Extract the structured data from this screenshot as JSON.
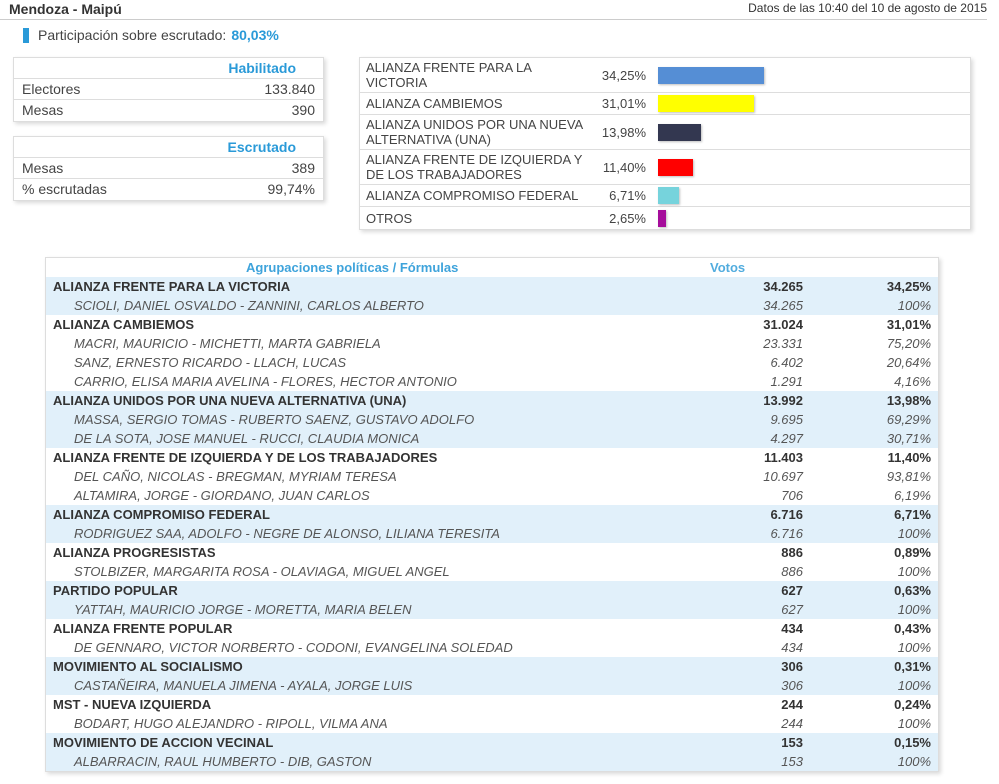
{
  "header": {
    "title": "Mendoza - Maipú",
    "date": "Datos de las 10:40 del 10 de agosto de 2015"
  },
  "participation": {
    "label": "Participación sobre escrutado:",
    "value": "80,03%"
  },
  "habilitado": {
    "title": "Habilitado",
    "rows": [
      {
        "label": "Electores",
        "value": "133.840"
      },
      {
        "label": "Mesas",
        "value": "390"
      }
    ]
  },
  "escrutado": {
    "title": "Escrutado",
    "rows": [
      {
        "label": "Mesas",
        "value": "389"
      },
      {
        "label": "% escrutadas",
        "value": "99,74%"
      }
    ]
  },
  "summary": [
    {
      "label": "ALIANZA FRENTE PARA LA VICTORIA",
      "pct": "34,25%",
      "value": 34.25,
      "color": "#558ed5"
    },
    {
      "label": "ALIANZA CAMBIEMOS",
      "pct": "31,01%",
      "value": 31.01,
      "color": "#ffff00"
    },
    {
      "label": "ALIANZA UNIDOS POR UNA NUEVA ALTERNATIVA (UNA)",
      "pct": "13,98%",
      "value": 13.98,
      "color": "#333750"
    },
    {
      "label": "ALIANZA FRENTE DE IZQUIERDA Y DE LOS TRABAJADORES",
      "pct": "11,40%",
      "value": 11.4,
      "color": "#ff0000"
    },
    {
      "label": "ALIANZA COMPROMISO FEDERAL",
      "pct": "6,71%",
      "value": 6.71,
      "color": "#76d3dc"
    },
    {
      "label": "OTROS",
      "pct": "2,65%",
      "value": 2.65,
      "color": "#a50d9b"
    }
  ],
  "results": {
    "col_name": "Agrupaciones políticas / Fórmulas",
    "col_votes": "Votos",
    "groups": [
      {
        "name": "ALIANZA FRENTE PARA LA VICTORIA",
        "votes": "34.265",
        "pct": "34,25%",
        "formulas": [
          {
            "name": "SCIOLI, DANIEL OSVALDO - ZANNINI, CARLOS ALBERTO",
            "votes": "34.265",
            "pct": "100%"
          }
        ]
      },
      {
        "name": "ALIANZA CAMBIEMOS",
        "votes": "31.024",
        "pct": "31,01%",
        "formulas": [
          {
            "name": "MACRI, MAURICIO - MICHETTI, MARTA GABRIELA",
            "votes": "23.331",
            "pct": "75,20%"
          },
          {
            "name": "SANZ, ERNESTO RICARDO - LLACH, LUCAS",
            "votes": "6.402",
            "pct": "20,64%"
          },
          {
            "name": "CARRIO, ELISA MARIA AVELINA - FLORES, HECTOR ANTONIO",
            "votes": "1.291",
            "pct": "4,16%"
          }
        ]
      },
      {
        "name": "ALIANZA UNIDOS POR UNA NUEVA ALTERNATIVA (UNA)",
        "votes": "13.992",
        "pct": "13,98%",
        "formulas": [
          {
            "name": "MASSA, SERGIO TOMAS - RUBERTO SAENZ, GUSTAVO ADOLFO",
            "votes": "9.695",
            "pct": "69,29%"
          },
          {
            "name": "DE LA SOTA, JOSE MANUEL - RUCCI, CLAUDIA MONICA",
            "votes": "4.297",
            "pct": "30,71%"
          }
        ]
      },
      {
        "name": "ALIANZA FRENTE DE IZQUIERDA Y DE LOS TRABAJADORES",
        "votes": "11.403",
        "pct": "11,40%",
        "formulas": [
          {
            "name": "DEL CAÑO, NICOLAS - BREGMAN, MYRIAM TERESA",
            "votes": "10.697",
            "pct": "93,81%"
          },
          {
            "name": "ALTAMIRA, JORGE - GIORDANO, JUAN CARLOS",
            "votes": "706",
            "pct": "6,19%"
          }
        ]
      },
      {
        "name": "ALIANZA COMPROMISO FEDERAL",
        "votes": "6.716",
        "pct": "6,71%",
        "formulas": [
          {
            "name": "RODRIGUEZ SAA, ADOLFO - NEGRE DE ALONSO, LILIANA TERESITA",
            "votes": "6.716",
            "pct": "100%"
          }
        ]
      },
      {
        "name": "ALIANZA PROGRESISTAS",
        "votes": "886",
        "pct": "0,89%",
        "formulas": [
          {
            "name": "STOLBIZER, MARGARITA ROSA - OLAVIAGA, MIGUEL ANGEL",
            "votes": "886",
            "pct": "100%"
          }
        ]
      },
      {
        "name": "PARTIDO POPULAR",
        "votes": "627",
        "pct": "0,63%",
        "formulas": [
          {
            "name": "YATTAH, MAURICIO JORGE - MORETTA, MARIA BELEN",
            "votes": "627",
            "pct": "100%"
          }
        ]
      },
      {
        "name": "ALIANZA FRENTE POPULAR",
        "votes": "434",
        "pct": "0,43%",
        "formulas": [
          {
            "name": "DE GENNARO, VICTOR NORBERTO - CODONI, EVANGELINA SOLEDAD",
            "votes": "434",
            "pct": "100%"
          }
        ]
      },
      {
        "name": "MOVIMIENTO AL SOCIALISMO",
        "votes": "306",
        "pct": "0,31%",
        "formulas": [
          {
            "name": "CASTAÑEIRA, MANUELA JIMENA - AYALA, JORGE LUIS",
            "votes": "306",
            "pct": "100%"
          }
        ]
      },
      {
        "name": "MST - NUEVA IZQUIERDA",
        "votes": "244",
        "pct": "0,24%",
        "formulas": [
          {
            "name": "BODART, HUGO ALEJANDRO - RIPOLL, VILMA ANA",
            "votes": "244",
            "pct": "100%"
          }
        ]
      },
      {
        "name": "MOVIMIENTO DE ACCION VECINAL",
        "votes": "153",
        "pct": "0,15%",
        "formulas": [
          {
            "name": "ALBARRACIN, RAUL HUMBERTO - DIB, GASTON",
            "votes": "153",
            "pct": "100%"
          }
        ]
      }
    ]
  }
}
